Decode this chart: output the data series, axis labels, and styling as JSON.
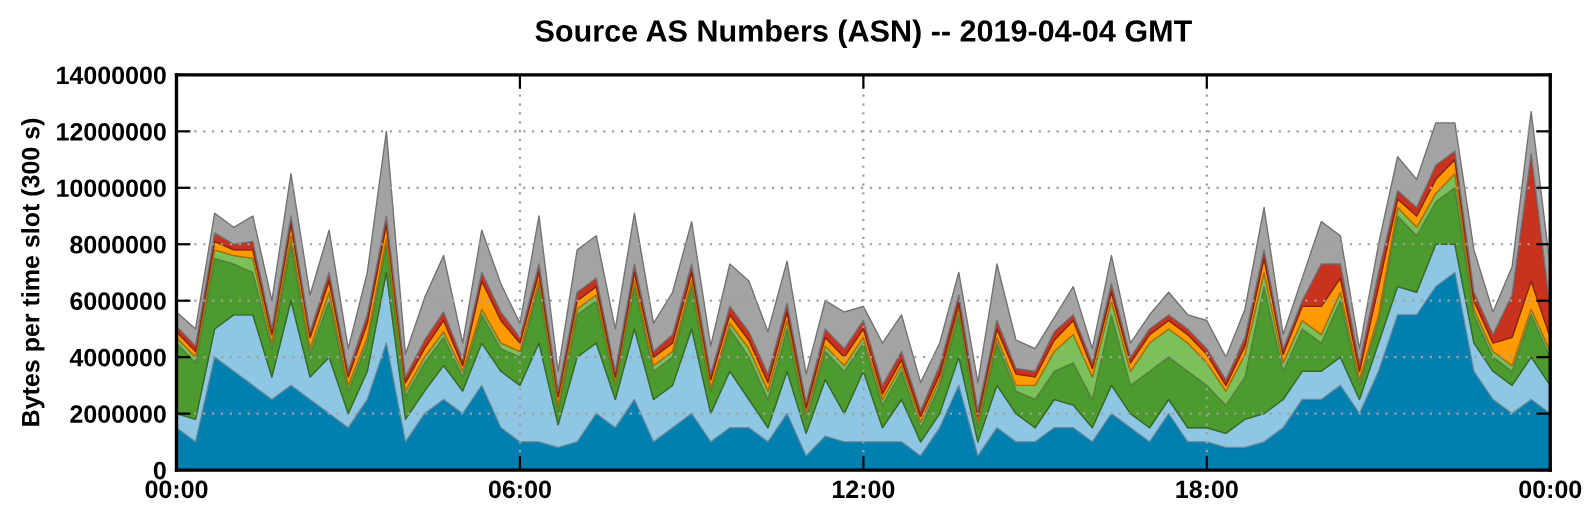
{
  "chart_data": {
    "type": "area",
    "stacked": true,
    "title": "Source AS Numbers (ASN) -- 2019-04-04 GMT",
    "ylabel": "Bytes per time slot (300 s)",
    "x": [
      "2019-04-04T00:00",
      "2019-04-04T00:20",
      "2019-04-04T00:40",
      "2019-04-04T01:00",
      "2019-04-04T01:20",
      "2019-04-04T01:40",
      "2019-04-04T02:00",
      "2019-04-04T02:20",
      "2019-04-04T02:40",
      "2019-04-04T03:00",
      "2019-04-04T03:20",
      "2019-04-04T03:40",
      "2019-04-04T04:00",
      "2019-04-04T04:20",
      "2019-04-04T04:40",
      "2019-04-04T05:00",
      "2019-04-04T05:20",
      "2019-04-04T05:40",
      "2019-04-04T06:00",
      "2019-04-04T06:20",
      "2019-04-04T06:40",
      "2019-04-04T07:00",
      "2019-04-04T07:20",
      "2019-04-04T07:40",
      "2019-04-04T08:00",
      "2019-04-04T08:20",
      "2019-04-04T08:40",
      "2019-04-04T09:00",
      "2019-04-04T09:20",
      "2019-04-04T09:40",
      "2019-04-04T10:00",
      "2019-04-04T10:20",
      "2019-04-04T10:40",
      "2019-04-04T11:00",
      "2019-04-04T11:20",
      "2019-04-04T11:40",
      "2019-04-04T12:00",
      "2019-04-04T12:20",
      "2019-04-04T12:40",
      "2019-04-04T13:00",
      "2019-04-04T13:20",
      "2019-04-04T13:40",
      "2019-04-04T14:00",
      "2019-04-04T14:20",
      "2019-04-04T14:40",
      "2019-04-04T15:00",
      "2019-04-04T15:20",
      "2019-04-04T15:40",
      "2019-04-04T16:00",
      "2019-04-04T16:20",
      "2019-04-04T16:40",
      "2019-04-04T17:00",
      "2019-04-04T17:20",
      "2019-04-04T17:40",
      "2019-04-04T18:00",
      "2019-04-04T18:20",
      "2019-04-04T18:40",
      "2019-04-04T19:00",
      "2019-04-04T19:20",
      "2019-04-04T19:40",
      "2019-04-04T20:00",
      "2019-04-04T20:20",
      "2019-04-04T20:40",
      "2019-04-04T21:00",
      "2019-04-04T21:20",
      "2019-04-04T21:40",
      "2019-04-04T22:00",
      "2019-04-04T22:20",
      "2019-04-04T22:40",
      "2019-04-04T23:00",
      "2019-04-04T23:20",
      "2019-04-04T23:40",
      "2019-04-05T00:00"
    ],
    "series": [
      {
        "color": "#0080b0",
        "values": [
          1500000,
          1000000,
          4000000,
          3500000,
          3000000,
          2500000,
          3000000,
          2500000,
          2000000,
          1500000,
          2500000,
          4500000,
          1000000,
          2000000,
          2500000,
          2000000,
          3000000,
          1500000,
          1000000,
          1000000,
          800000,
          1000000,
          2000000,
          1500000,
          2500000,
          1000000,
          1500000,
          2000000,
          1000000,
          1500000,
          1500000,
          1000000,
          2000000,
          500000,
          1200000,
          1000000,
          1000000,
          1000000,
          1000000,
          500000,
          1500000,
          3000000,
          500000,
          1500000,
          1000000,
          1000000,
          1500000,
          1500000,
          1000000,
          2000000,
          1500000,
          1000000,
          2000000,
          1000000,
          1000000,
          800000,
          800000,
          1000000,
          1500000,
          2500000,
          2500000,
          3000000,
          2000000,
          3500000,
          5500000,
          5500000,
          6500000,
          7000000,
          3500000,
          2500000,
          2000000,
          2500000,
          2000000
        ]
      },
      {
        "color": "#8fc6e3",
        "values": [
          500000,
          800000,
          1000000,
          2000000,
          2500000,
          800000,
          3000000,
          800000,
          2000000,
          500000,
          1000000,
          2500000,
          800000,
          800000,
          1200000,
          800000,
          1500000,
          2000000,
          2000000,
          3500000,
          800000,
          3000000,
          2500000,
          1000000,
          2500000,
          1500000,
          1500000,
          3000000,
          1000000,
          2000000,
          1000000,
          500000,
          1500000,
          800000,
          2000000,
          1000000,
          2500000,
          500000,
          1500000,
          500000,
          500000,
          1000000,
          500000,
          1500000,
          1000000,
          500000,
          1000000,
          800000,
          500000,
          1000000,
          500000,
          500000,
          500000,
          500000,
          500000,
          500000,
          1000000,
          1000000,
          1000000,
          1000000,
          1000000,
          1000000,
          500000,
          1000000,
          1000000,
          800000,
          1500000,
          1000000,
          1000000,
          1000000,
          1000000,
          1500000,
          1000000
        ]
      },
      {
        "color": "#4d9a2e",
        "values": [
          2500000,
          2000000,
          2500000,
          1800000,
          1500000,
          1000000,
          2000000,
          800000,
          2000000,
          800000,
          1000000,
          1000000,
          800000,
          1000000,
          1000000,
          500000,
          1000000,
          800000,
          1000000,
          2000000,
          500000,
          1500000,
          1500000,
          500000,
          1500000,
          1000000,
          1000000,
          1500000,
          800000,
          1500000,
          1500000,
          1000000,
          1500000,
          500000,
          1000000,
          1500000,
          1000000,
          800000,
          1000000,
          500000,
          1000000,
          1500000,
          500000,
          1500000,
          800000,
          1000000,
          1000000,
          1500000,
          1000000,
          2500000,
          1000000,
          2000000,
          1500000,
          2000000,
          1500000,
          1000000,
          1500000,
          4500000,
          1000000,
          1500000,
          1000000,
          2000000,
          500000,
          800000,
          2500000,
          2000000,
          1500000,
          2000000,
          1000000,
          500000,
          500000,
          1500000,
          1000000
        ]
      },
      {
        "color": "#7cc05a",
        "values": [
          200000,
          200000,
          300000,
          300000,
          500000,
          200000,
          300000,
          200000,
          300000,
          200000,
          200000,
          200000,
          200000,
          200000,
          200000,
          200000,
          200000,
          200000,
          200000,
          200000,
          200000,
          200000,
          200000,
          100000,
          200000,
          200000,
          200000,
          200000,
          100000,
          200000,
          300000,
          300000,
          300000,
          200000,
          200000,
          200000,
          200000,
          200000,
          200000,
          200000,
          200000,
          200000,
          200000,
          200000,
          200000,
          500000,
          700000,
          1000000,
          800000,
          500000,
          500000,
          1000000,
          1000000,
          1000000,
          800000,
          500000,
          800000,
          500000,
          300000,
          300000,
          300000,
          300000,
          200000,
          200000,
          300000,
          300000,
          300000,
          500000,
          200000,
          200000,
          200000,
          200000,
          200000
        ]
      },
      {
        "color": "#ff9a00",
        "values": [
          200000,
          200000,
          300000,
          200000,
          300000,
          300000,
          400000,
          400000,
          400000,
          300000,
          500000,
          500000,
          300000,
          300000,
          400000,
          200000,
          1000000,
          800000,
          300000,
          300000,
          300000,
          300000,
          300000,
          200000,
          300000,
          300000,
          300000,
          300000,
          300000,
          300000,
          300000,
          300000,
          300000,
          200000,
          300000,
          300000,
          300000,
          200000,
          200000,
          200000,
          200000,
          200000,
          200000,
          300000,
          400000,
          300000,
          400000,
          500000,
          300000,
          300000,
          300000,
          300000,
          300000,
          300000,
          300000,
          200000,
          300000,
          500000,
          300000,
          500000,
          1000000,
          500000,
          300000,
          1000000,
          300000,
          400000,
          500000,
          500000,
          300000,
          300000,
          1000000,
          1000000,
          500000
        ]
      },
      {
        "color": "#c8321e",
        "values": [
          200000,
          200000,
          300000,
          200000,
          300000,
          200000,
          300000,
          200000,
          300000,
          200000,
          300000,
          300000,
          200000,
          300000,
          300000,
          200000,
          300000,
          300000,
          200000,
          300000,
          200000,
          300000,
          300000,
          200000,
          300000,
          200000,
          300000,
          300000,
          200000,
          300000,
          300000,
          300000,
          300000,
          200000,
          300000,
          300000,
          300000,
          300000,
          300000,
          200000,
          300000,
          300000,
          200000,
          300000,
          200000,
          200000,
          300000,
          200000,
          200000,
          300000,
          200000,
          200000,
          200000,
          200000,
          200000,
          200000,
          300000,
          300000,
          200000,
          200000,
          1500000,
          500000,
          300000,
          500000,
          300000,
          300000,
          500000,
          300000,
          300000,
          300000,
          1500000,
          4500000,
          1000000
        ]
      },
      {
        "color": "#a3a3a3",
        "values": [
          500000,
          600000,
          700000,
          600000,
          900000,
          1000000,
          1500000,
          1300000,
          1500000,
          800000,
          1500000,
          3000000,
          800000,
          1500000,
          2000000,
          600000,
          1500000,
          1000000,
          500000,
          1700000,
          700000,
          1500000,
          1500000,
          1500000,
          1800000,
          1000000,
          1500000,
          1500000,
          1000000,
          1500000,
          1800000,
          1500000,
          1500000,
          1000000,
          1000000,
          1300000,
          500000,
          1500000,
          1300000,
          1000000,
          800000,
          800000,
          1000000,
          2000000,
          1000000,
          800000,
          500000,
          1000000,
          500000,
          1000000,
          500000,
          500000,
          800000,
          500000,
          1000000,
          800000,
          1000000,
          1500000,
          500000,
          800000,
          1500000,
          1000000,
          500000,
          1000000,
          1200000,
          1000000,
          1500000,
          1000000,
          1500000,
          800000,
          1000000,
          1500000,
          1500000
        ]
      }
    ],
    "xlim": [
      "2019-04-04T00:00",
      "2019-04-05T00:00"
    ],
    "xticks": [
      {
        "value": "2019-04-04T00:00",
        "label": "00:00"
      },
      {
        "value": "2019-04-04T06:00",
        "label": "06:00"
      },
      {
        "value": "2019-04-04T12:00",
        "label": "12:00"
      },
      {
        "value": "2019-04-04T18:00",
        "label": "18:00"
      },
      {
        "value": "2019-04-05T00:00",
        "label": "00:00"
      }
    ],
    "ylim": [
      0,
      14000000
    ],
    "yticks": [
      0,
      2000000,
      4000000,
      6000000,
      8000000,
      10000000,
      12000000,
      14000000
    ],
    "grid": true
  }
}
